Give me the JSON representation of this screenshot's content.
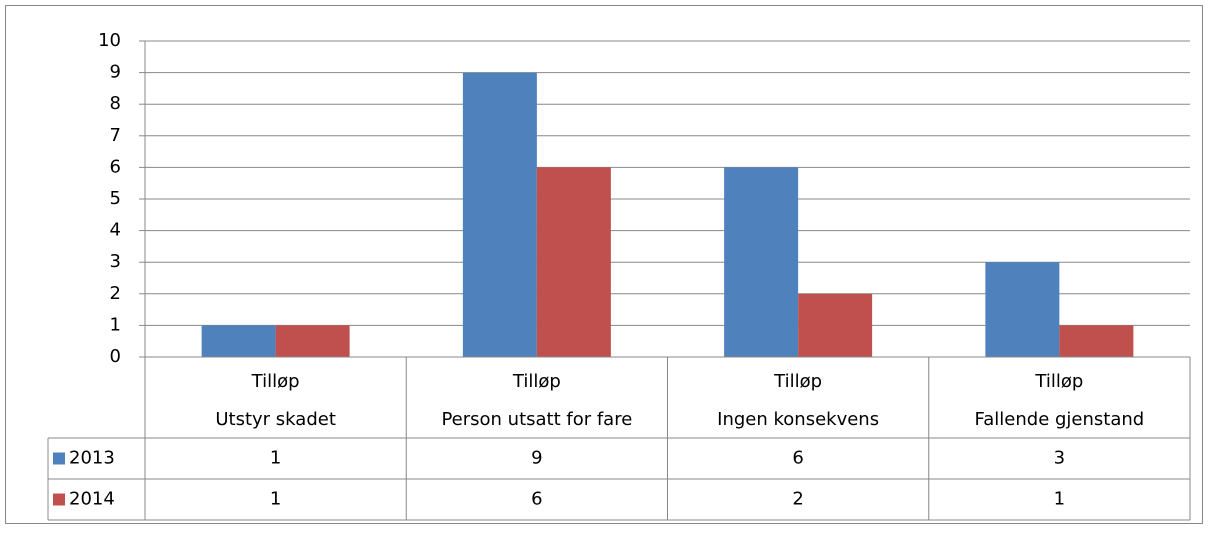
{
  "chart_data": {
    "type": "bar",
    "categories": [
      [
        "Tilløp",
        "Utstyr skadet"
      ],
      [
        "Tilløp",
        "Person utsatt for fare"
      ],
      [
        "Tilløp",
        "Ingen konsekvens"
      ],
      [
        "Tilløp",
        "Fallende gjenstand"
      ]
    ],
    "series": [
      {
        "name": "2013",
        "color": "#4f81bd",
        "values": [
          1,
          9,
          6,
          3
        ]
      },
      {
        "name": "2014",
        "color": "#c0504d",
        "values": [
          1,
          6,
          2,
          1
        ]
      }
    ],
    "ylim": [
      0,
      10
    ],
    "yticks": [
      0,
      1,
      2,
      3,
      4,
      5,
      6,
      7,
      8,
      9,
      10
    ],
    "grid": true,
    "data_table": true
  }
}
